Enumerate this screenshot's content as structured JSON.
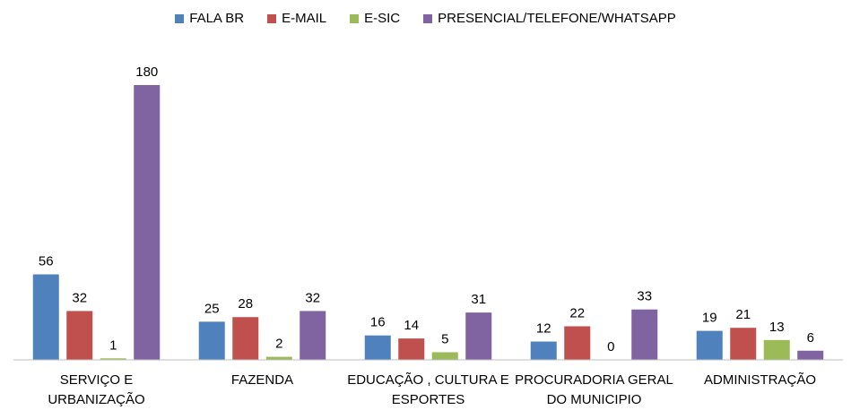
{
  "chart_data": {
    "type": "bar",
    "categories": [
      "SERVIÇO E URBANIZAÇÃO",
      "FAZENDA",
      "EDUCAÇÃO , CULTURA E ESPORTES",
      "PROCURADORIA GERAL DO MUNICIPIO",
      "ADMINISTRAÇÃO"
    ],
    "series": [
      {
        "name": "FALA BR",
        "color": "#4f81bd",
        "values": [
          56,
          25,
          16,
          12,
          19
        ]
      },
      {
        "name": "E-MAIL",
        "color": "#c0504d",
        "values": [
          32,
          28,
          14,
          22,
          21
        ]
      },
      {
        "name": "E-SIC",
        "color": "#9bbb59",
        "values": [
          1,
          2,
          5,
          0,
          13
        ]
      },
      {
        "name": "PRESENCIAL/TELEFONE/WHATSAPP",
        "color": "#8064a2",
        "values": [
          180,
          32,
          31,
          33,
          6
        ]
      }
    ],
    "legend": "top"
  }
}
